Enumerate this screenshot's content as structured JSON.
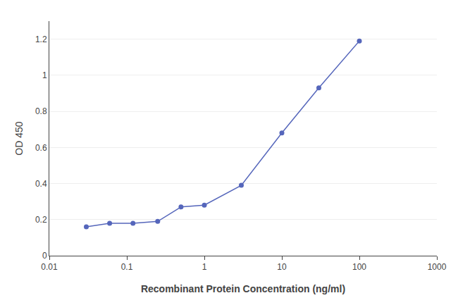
{
  "chart_data": {
    "type": "line",
    "xlabel": "Recombinant Protein Concentration (ng/ml)",
    "ylabel": "OD 450",
    "x": [
      0.03,
      0.06,
      0.12,
      0.25,
      0.5,
      1.0,
      3.0,
      10.0,
      30.0,
      100.0
    ],
    "values": [
      0.16,
      0.18,
      0.18,
      0.19,
      0.27,
      0.28,
      0.39,
      0.68,
      0.93,
      1.19
    ],
    "color": "#5566bb",
    "marker": "circle",
    "log": "x",
    "xlim": [
      0.01,
      1000
    ],
    "xticks": [
      0.01,
      0.1,
      1,
      10,
      100,
      1000
    ],
    "ylim": [
      0,
      1.3
    ],
    "yticks": [
      0,
      0.2,
      0.4,
      0.6,
      0.8,
      1,
      1.2
    ],
    "grid": "y"
  }
}
